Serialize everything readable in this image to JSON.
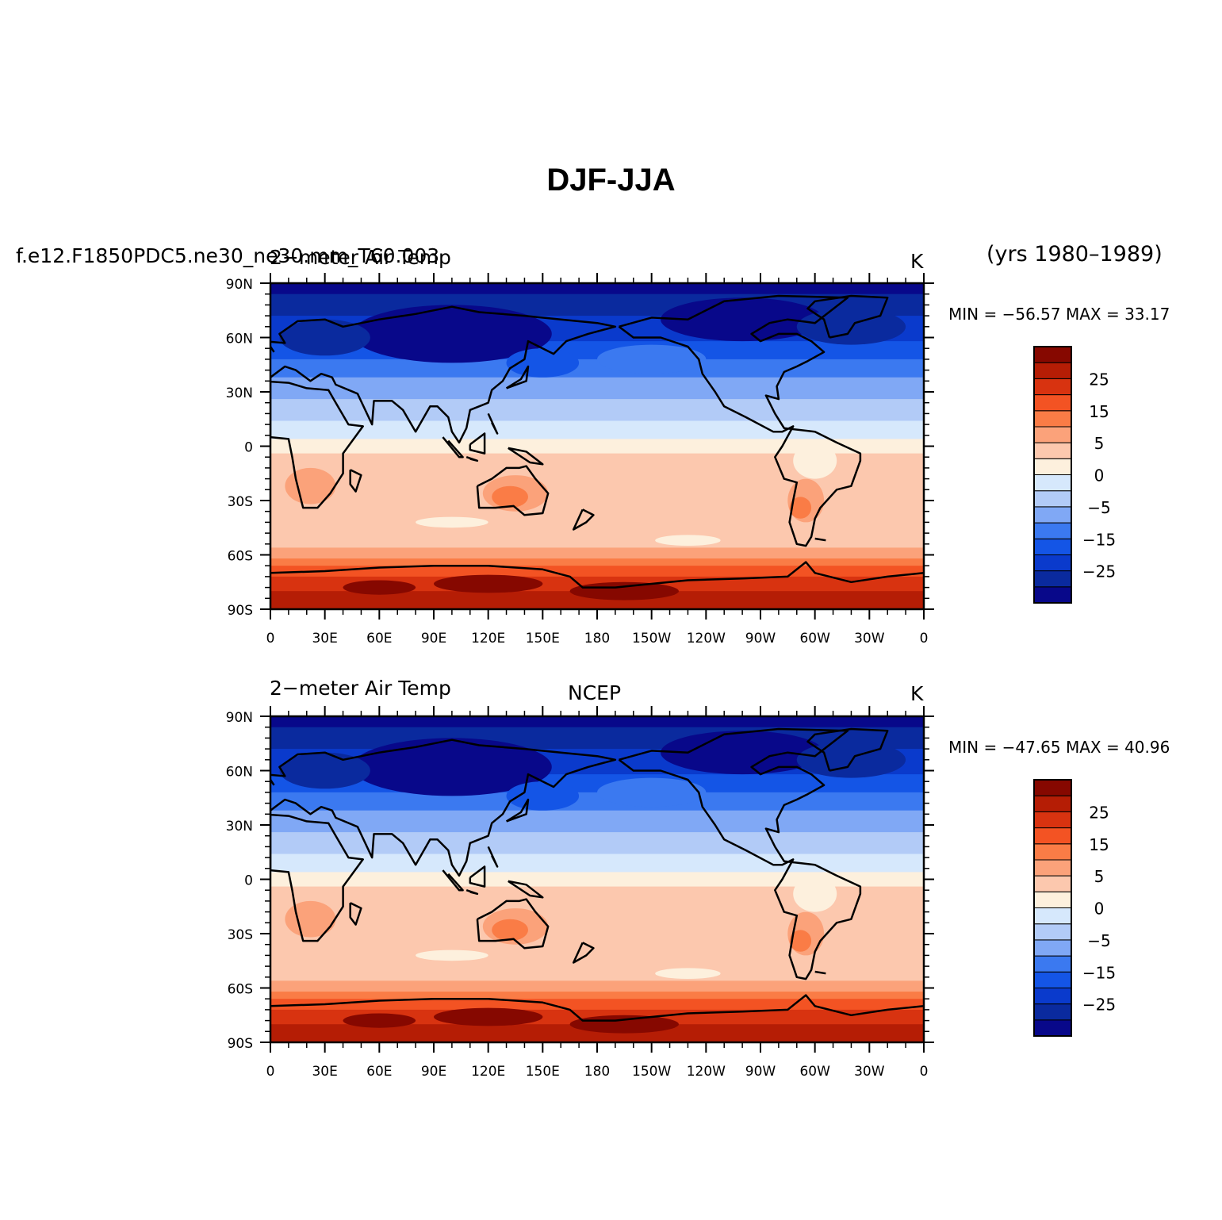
{
  "title": "DJF-JJA",
  "years_label": "(yrs 1980–1989)",
  "colorbar": {
    "colors": [
      "#08088a",
      "#0a2a9e",
      "#0a3acc",
      "#1455e6",
      "#3b79f0",
      "#80a8f5",
      "#b2cbf7",
      "#d6e8fc",
      "#fdf0dd",
      "#fcc8ae",
      "#fba27a",
      "#fa7c46",
      "#f35323",
      "#d83310",
      "#b51d05",
      "#860800"
    ],
    "labels": [
      "25",
      "15",
      "5",
      "0",
      "−5",
      "−15",
      "−25"
    ]
  },
  "axes": {
    "lat_labels": [
      "90N",
      "60N",
      "30N",
      "0",
      "30S",
      "60S",
      "90S"
    ],
    "lon_labels": [
      "0",
      "30E",
      "60E",
      "90E",
      "120E",
      "150E",
      "180",
      "150W",
      "120W",
      "90W",
      "60W",
      "30W",
      "0"
    ]
  },
  "panels": [
    {
      "left_title": "f.e12.F1850PDC5.ne30_ne30.mm_T60.003",
      "overlay_title": "2−meter Air Temp",
      "center_title": "",
      "units": "K",
      "min_max": "MIN = −56.57  MAX =   33.17"
    },
    {
      "left_title": "2−meter Air Temp",
      "overlay_title": "",
      "center_title": "NCEP",
      "units": "K",
      "min_max": "MIN = −47.65  MAX =   40.96"
    }
  ]
}
